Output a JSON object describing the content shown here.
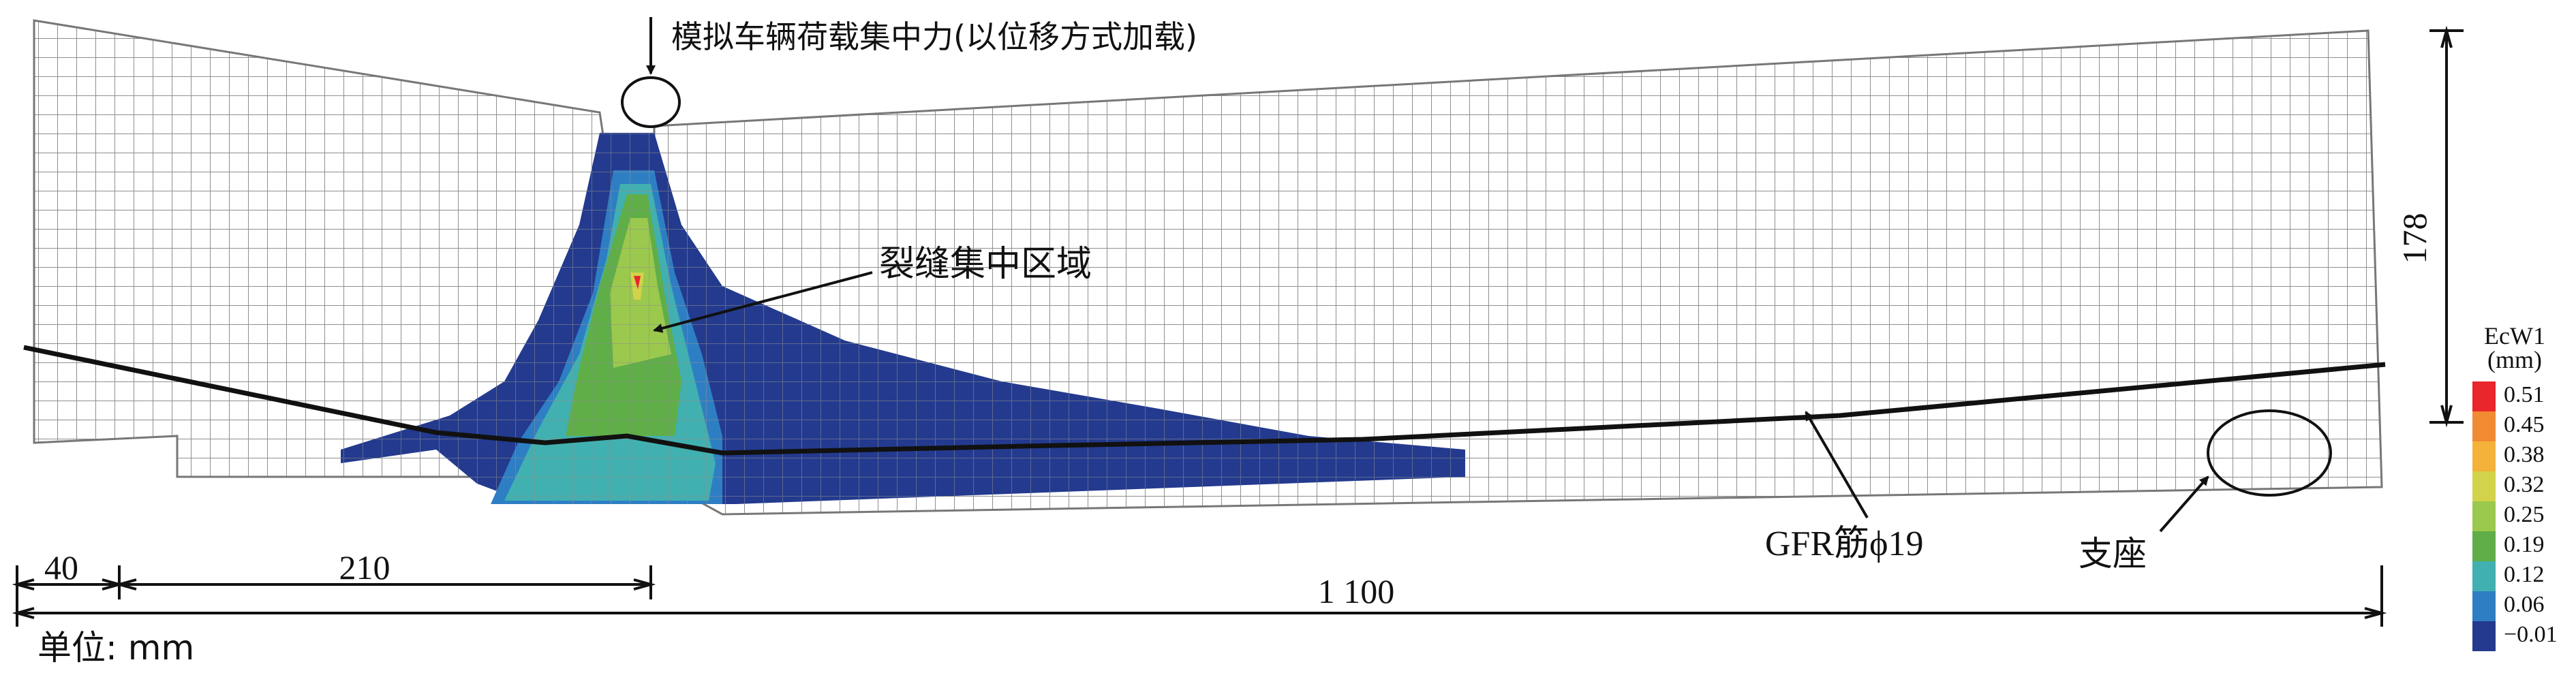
{
  "annotations": {
    "load_label": "模拟车辆荷载集中力(以位移方式加载)",
    "crack_zone_label": "裂缝集中区域",
    "rebar_label": "GFR筋ϕ19",
    "support_label": "支座"
  },
  "dimensions": {
    "left_overhang": "40",
    "load_offset": "210",
    "span": "1 100",
    "height": "178"
  },
  "unit_label": "单位: mm",
  "legend": {
    "title": "EcW1",
    "unit": "(mm)",
    "levels": [
      "0.51",
      "0.45",
      "0.38",
      "0.32",
      "0.25",
      "0.19",
      "0.12",
      "0.06",
      "−0.01"
    ],
    "colors": [
      "#e8262b",
      "#f08a33",
      "#f4b23a",
      "#d2d34a",
      "#9bc94d",
      "#5fae48",
      "#41b0b0",
      "#2e7ec4",
      "#233a8e"
    ]
  },
  "colors": {
    "mesh": "#8f8f8f",
    "rebar": "#111111",
    "crack_dark": "#233a8e"
  }
}
